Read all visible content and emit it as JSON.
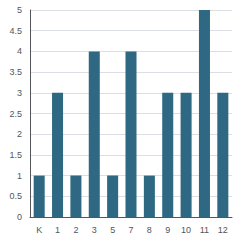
{
  "chart_data": {
    "type": "bar",
    "categories": [
      "K",
      "1",
      "2",
      "3",
      "5",
      "7",
      "8",
      "9",
      "10",
      "11",
      "12"
    ],
    "values": [
      1,
      3,
      1,
      4,
      1,
      4,
      1,
      3,
      3,
      5,
      3
    ],
    "color": "#2e6882",
    "ylim": [
      0,
      5
    ],
    "yticks": [
      0,
      0.5,
      1,
      1.5,
      2,
      2.5,
      3,
      3.5,
      4,
      4.5,
      5
    ],
    "grid": true
  }
}
